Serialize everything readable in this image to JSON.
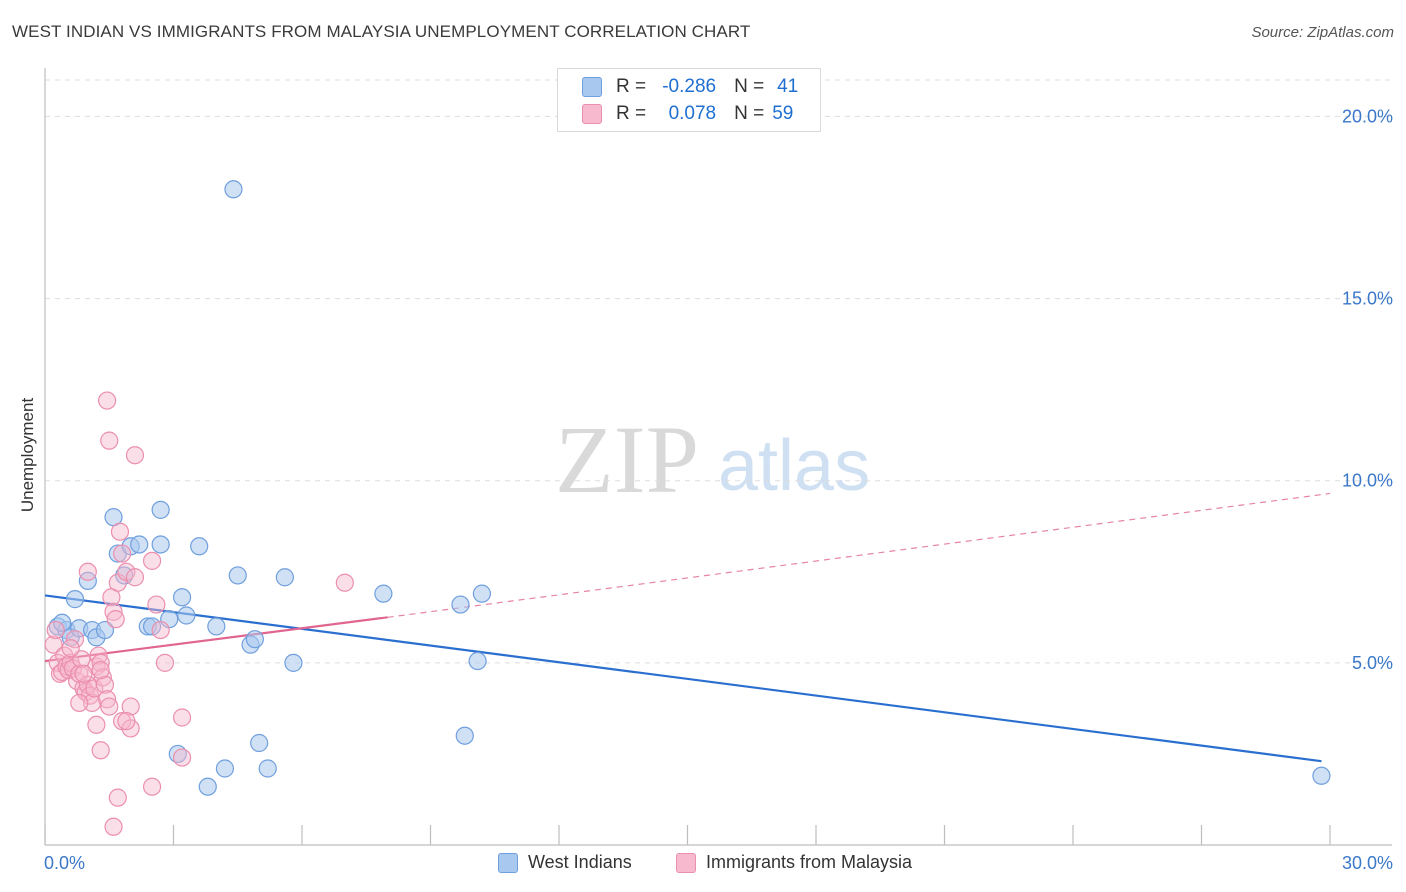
{
  "title": "WEST INDIAN VS IMMIGRANTS FROM MALAYSIA UNEMPLOYMENT CORRELATION CHART",
  "source": "Source: ZipAtlas.com",
  "watermark": {
    "zip": "ZIP",
    "atlas": "atlas"
  },
  "colors": {
    "blue_fill": "#a9c8ef",
    "blue_stroke": "#6f9fdd",
    "blue_line": "#2a6fd0",
    "pink_fill": "#f6b9cd",
    "pink_stroke": "#eb8fae",
    "pink_line": "#e06590",
    "axis_text": "#3b78c9",
    "grid": "#dddddd"
  },
  "legend": {
    "rows": [
      {
        "r_label": "R =",
        "r_value": "-0.286",
        "n_label": "N =",
        "n_value": "41"
      },
      {
        "r_label": "R =",
        "r_value": "0.078",
        "n_label": "N =",
        "n_value": "59"
      }
    ]
  },
  "chart_data": {
    "type": "scatter",
    "title": "WEST INDIAN VS IMMIGRANTS FROM MALAYSIA UNEMPLOYMENT CORRELATION CHART",
    "xlabel": "",
    "ylabel": "Unemployment",
    "xlim": [
      0,
      30
    ],
    "ylim": [
      0,
      21
    ],
    "x_tick_labels": [
      "0.0%",
      "30.0%"
    ],
    "y_ticks": [
      5,
      10,
      15,
      20
    ],
    "y_tick_labels": [
      "5.0%",
      "10.0%",
      "15.0%",
      "20.0%"
    ],
    "grid": true,
    "series": [
      {
        "name": "West Indians",
        "color": "#6f9fdd",
        "r": -0.286,
        "n": 41,
        "trend": {
          "x": [
            0.0,
            29.8
          ],
          "y": [
            6.85,
            2.3
          ],
          "style": "solid"
        },
        "points": [
          [
            0.3,
            6.0
          ],
          [
            0.5,
            5.9
          ],
          [
            0.6,
            5.7
          ],
          [
            0.4,
            6.1
          ],
          [
            0.8,
            5.95
          ],
          [
            0.7,
            6.75
          ],
          [
            1.0,
            7.25
          ],
          [
            1.1,
            5.9
          ],
          [
            1.2,
            5.7
          ],
          [
            1.4,
            5.9
          ],
          [
            1.6,
            9.0
          ],
          [
            1.7,
            8.0
          ],
          [
            1.85,
            7.4
          ],
          [
            2.0,
            8.2
          ],
          [
            2.2,
            8.25
          ],
          [
            2.4,
            6.0
          ],
          [
            2.5,
            6.0
          ],
          [
            2.7,
            8.25
          ],
          [
            2.7,
            9.2
          ],
          [
            2.9,
            6.2
          ],
          [
            3.2,
            6.8
          ],
          [
            3.3,
            6.3
          ],
          [
            3.6,
            8.2
          ],
          [
            4.0,
            6.0
          ],
          [
            4.4,
            18.0
          ],
          [
            4.5,
            7.4
          ],
          [
            4.8,
            5.5
          ],
          [
            4.9,
            5.65
          ],
          [
            5.6,
            7.35
          ],
          [
            5.0,
            2.8
          ],
          [
            3.1,
            2.5
          ],
          [
            3.8,
            1.6
          ],
          [
            4.2,
            2.1
          ],
          [
            5.2,
            2.1
          ],
          [
            5.8,
            5.0
          ],
          [
            7.9,
            6.9
          ],
          [
            9.8,
            3.0
          ],
          [
            9.7,
            6.6
          ],
          [
            10.1,
            5.05
          ],
          [
            10.2,
            6.9
          ],
          [
            29.8,
            1.9
          ]
        ]
      },
      {
        "name": "Immigrants from Malaysia",
        "color": "#eb8fae",
        "r": 0.078,
        "n": 59,
        "trend": {
          "x": [
            0.0,
            8.0
          ],
          "y": [
            5.05,
            6.25
          ],
          "style": "solid"
        },
        "trend_extension": {
          "x": [
            8.0,
            30.0
          ],
          "y": [
            6.25,
            9.65
          ],
          "style": "dashed"
        },
        "points": [
          [
            0.2,
            5.5
          ],
          [
            0.25,
            5.9
          ],
          [
            0.3,
            5.0
          ],
          [
            0.35,
            4.7
          ],
          [
            0.4,
            4.75
          ],
          [
            0.45,
            5.2
          ],
          [
            0.5,
            4.9
          ],
          [
            0.55,
            4.8
          ],
          [
            0.6,
            5.0
          ],
          [
            0.65,
            4.85
          ],
          [
            0.7,
            5.65
          ],
          [
            0.75,
            4.5
          ],
          [
            0.8,
            4.7
          ],
          [
            0.85,
            5.1
          ],
          [
            0.9,
            4.3
          ],
          [
            0.95,
            4.2
          ],
          [
            1.0,
            4.4
          ],
          [
            1.05,
            4.1
          ],
          [
            1.1,
            3.9
          ],
          [
            1.15,
            4.3
          ],
          [
            1.2,
            4.9
          ],
          [
            1.25,
            5.2
          ],
          [
            1.3,
            5.0
          ],
          [
            1.35,
            4.6
          ],
          [
            1.4,
            4.4
          ],
          [
            1.45,
            4.0
          ],
          [
            1.5,
            3.8
          ],
          [
            1.55,
            6.8
          ],
          [
            1.6,
            6.4
          ],
          [
            1.65,
            6.2
          ],
          [
            1.7,
            7.2
          ],
          [
            1.8,
            8.0
          ],
          [
            1.9,
            7.5
          ],
          [
            1.5,
            11.1
          ],
          [
            1.45,
            12.2
          ],
          [
            1.75,
            8.6
          ],
          [
            2.1,
            7.35
          ],
          [
            2.1,
            10.7
          ],
          [
            2.5,
            7.8
          ],
          [
            2.6,
            6.6
          ],
          [
            2.7,
            5.9
          ],
          [
            2.8,
            5.0
          ],
          [
            1.0,
            7.5
          ],
          [
            1.3,
            2.6
          ],
          [
            1.7,
            1.3
          ],
          [
            2.0,
            3.8
          ],
          [
            2.5,
            1.6
          ],
          [
            3.2,
            3.5
          ],
          [
            3.2,
            2.4
          ],
          [
            0.8,
            3.9
          ],
          [
            1.2,
            3.3
          ],
          [
            1.8,
            3.4
          ],
          [
            2.0,
            3.2
          ],
          [
            1.6,
            0.5
          ],
          [
            7.0,
            7.2
          ],
          [
            1.9,
            3.4
          ],
          [
            0.9,
            4.7
          ],
          [
            0.6,
            5.4
          ],
          [
            1.3,
            4.8
          ]
        ]
      }
    ]
  }
}
